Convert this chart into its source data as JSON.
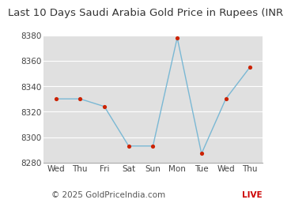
{
  "title": "Last 10 Days Saudi Arabia Gold Price in Rupees (INR",
  "days": [
    "Wed",
    "Thu",
    "Fri",
    "Sat",
    "Sun",
    "Mon",
    "Tue",
    "Wed",
    "Thu"
  ],
  "values": [
    8330,
    8330,
    8324,
    8293,
    8293,
    8378,
    8287,
    8330,
    8355
  ],
  "line_color": "#7ab8d4",
  "marker_color": "#cc2200",
  "ylim": [
    8280,
    8380
  ],
  "yticks": [
    8280,
    8300,
    8320,
    8340,
    8360,
    8380
  ],
  "bg_color": "#ffffff",
  "plot_bg": "#e0e0e0",
  "footer_text": "© 2025 GoldPriceIndia.com",
  "footer_live": "LIVE",
  "footer_color": "#555555",
  "footer_live_color": "#cc0000",
  "title_fontsize": 9.5,
  "tick_fontsize": 7.5,
  "footer_fontsize": 7.5
}
